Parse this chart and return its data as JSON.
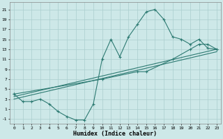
{
  "xlabel": "Humidex (Indice chaleur)",
  "xlim": [
    -0.5,
    23.5
  ],
  "ylim": [
    -2,
    22.5
  ],
  "yticks": [
    -1,
    1,
    3,
    5,
    7,
    9,
    11,
    13,
    15,
    17,
    19,
    21
  ],
  "xticks": [
    0,
    1,
    2,
    3,
    4,
    5,
    6,
    7,
    8,
    9,
    10,
    11,
    12,
    13,
    14,
    15,
    16,
    17,
    18,
    19,
    20,
    21,
    22,
    23
  ],
  "background_color": "#cde8e8",
  "grid_color": "#aacece",
  "line_color": "#2d7a72",
  "line1_x": [
    0,
    1,
    2,
    3,
    4,
    5,
    6,
    7,
    8,
    9,
    10,
    11,
    12,
    13,
    14,
    15,
    16,
    17,
    18,
    19,
    20,
    21,
    22,
    23
  ],
  "line1_y": [
    4,
    2.5,
    2.5,
    3,
    2,
    0.5,
    -0.5,
    -1.2,
    -1.2,
    2,
    11,
    15,
    11.5,
    15.5,
    18,
    20.5,
    21,
    19,
    15.5,
    15,
    14,
    15,
    13.2,
    13
  ],
  "line2_x": [
    0,
    10,
    14,
    15,
    18,
    20,
    21,
    22,
    23
  ],
  "line2_y": [
    4,
    7,
    8.5,
    8.5,
    11,
    13,
    14,
    14,
    13
  ],
  "line3_x": [
    0,
    23
  ],
  "line3_y": [
    3.5,
    13
  ],
  "line4_x": [
    0,
    23
  ],
  "line4_y": [
    3,
    12.5
  ]
}
